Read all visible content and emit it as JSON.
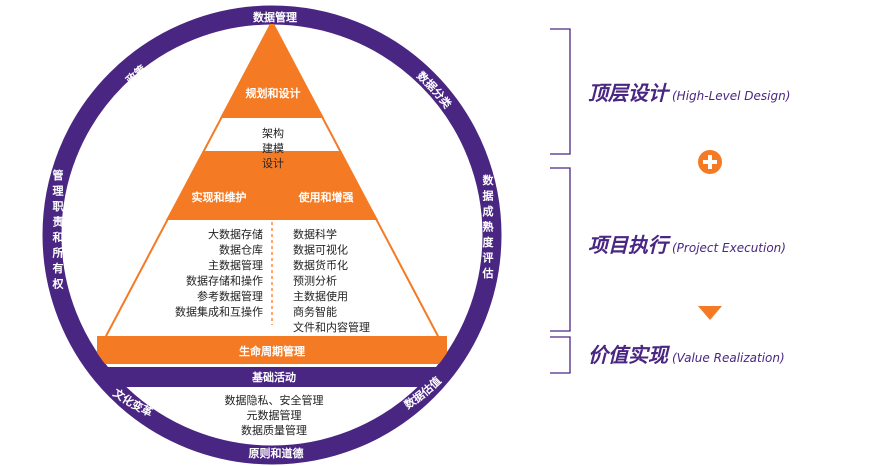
{
  "colors": {
    "ring": "#4a2683",
    "accent": "#f47a24",
    "text": "#222222",
    "white": "#ffffff"
  },
  "ring_labels": {
    "top": "数据管理",
    "upper_left": "政策",
    "upper_right": "数据分类",
    "left_vertical": "管理职责和所有权",
    "right_vertical": "数据成熟度评估",
    "lower_left": "文化变革",
    "lower_right": "数据估值",
    "bottom": "原则和道德"
  },
  "pyramid": {
    "apex": "规划和设计",
    "apex_items": [
      "架构",
      "建模",
      "设计"
    ],
    "left_band": "实现和维护",
    "right_band": "使用和增强",
    "left_items": [
      "大数据存储",
      "数据仓库",
      "主数据管理",
      "数据存储和操作",
      "参考数据管理",
      "数据集成和互操作"
    ],
    "right_items": [
      "数据科学",
      "数据可视化",
      "数据货币化",
      "预测分析",
      "主数据使用",
      "商务智能",
      "文件和内容管理"
    ],
    "lifecycle": "生命周期管理"
  },
  "foundation": {
    "label": "基础活动",
    "items": [
      "数据隐私、安全管理",
      "元数据管理",
      "数据质量管理"
    ]
  },
  "stages": [
    {
      "title": "顶层设计",
      "subtitle": "(High-Level Design)"
    },
    {
      "title": "项目执行",
      "subtitle": "(Project Execution)"
    },
    {
      "title": "价值实现",
      "subtitle": "(Value Realization)"
    }
  ],
  "icons": {
    "plus": "plus-circle-icon",
    "arrow": "down-triangle-icon"
  }
}
